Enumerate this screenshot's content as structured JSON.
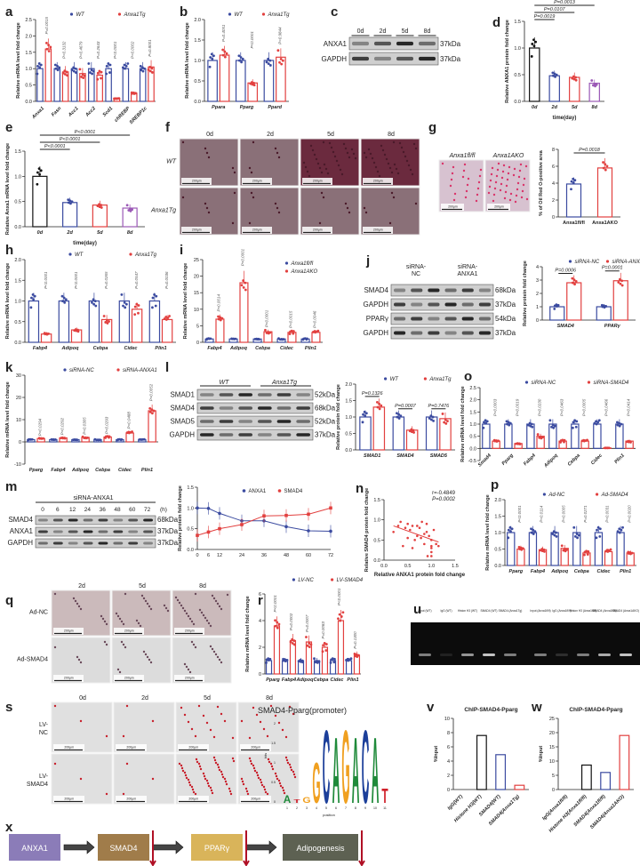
{
  "colors": {
    "blue": "#3b4ba0",
    "red": "#e2403f",
    "black": "#111111",
    "purple": "#9b59b6",
    "line_blue": "#3b4ba0",
    "line_red": "#e2403f"
  },
  "panel_letters": [
    "a",
    "b",
    "c",
    "d",
    "e",
    "f",
    "g",
    "h",
    "i",
    "j",
    "k",
    "l",
    "m",
    "n",
    "o",
    "p",
    "q",
    "r",
    "s",
    "t",
    "u",
    "v",
    "w",
    "x"
  ],
  "blots": {
    "c": {
      "lanes": [
        "0d",
        "2d",
        "5d",
        "8d"
      ],
      "rows": [
        {
          "name": "ANXA1",
          "kda": "37kDa"
        },
        {
          "name": "GAPDH",
          "kda": "37kDa"
        }
      ]
    },
    "j": {
      "groups": [
        "siRNA-\nNC",
        "siRNA-\nANXA1"
      ],
      "group_lines": [
        [
          "siRNA-",
          "NC"
        ],
        [
          "siRNA-",
          "ANXA1"
        ]
      ],
      "rows": [
        {
          "name": "SMAD4",
          "kda": "68kDa"
        },
        {
          "name": "GAPDH",
          "kda": "37kDa"
        },
        {
          "name": "PPARγ",
          "kda": "54kDa"
        },
        {
          "name": "GAPDH",
          "kda": "37kDa"
        }
      ]
    },
    "l": {
      "groups": [
        "WT",
        "Anxa1Tg"
      ],
      "rows": [
        {
          "name": "SMAD1",
          "kda": "52kDa"
        },
        {
          "name": "SMAD4",
          "kda": "68kDa"
        },
        {
          "name": "SMAD5",
          "kda": "52kDa"
        },
        {
          "name": "GAPDH",
          "kda": "37kDa"
        }
      ]
    },
    "m": {
      "group": "siRNA-ANXA1",
      "lanes": [
        "0",
        "6",
        "12",
        "24",
        "36",
        "48",
        "60",
        "72"
      ],
      "unit": "(h)",
      "rows": [
        {
          "name": "SMAD4",
          "kda": "68kDa"
        },
        {
          "name": "ANXA1",
          "kda": "37kDa"
        },
        {
          "name": "GAPDH",
          "kda": "37kDa"
        }
      ]
    }
  },
  "micrographs": {
    "f": {
      "cols": [
        "0d",
        "2d",
        "5d",
        "8d"
      ],
      "rows": [
        "WT",
        "Anxa1Tg"
      ]
    },
    "g": {
      "cols": [
        "Anxa1fl/fl",
        "Anxa1AKO"
      ]
    },
    "q": {
      "cols": [
        "2d",
        "5d",
        "8d"
      ],
      "rows": [
        "Ad-NC",
        "Ad-SMAD4"
      ]
    },
    "s": {
      "cols": [
        "0d",
        "2d",
        "5d",
        "8d"
      ],
      "rows": [
        "LV-\nNC",
        "LV-\nSMAD4"
      ],
      "row_lines": [
        [
          "LV-",
          "NC"
        ],
        [
          "LV-",
          "SMAD4"
        ]
      ]
    },
    "scale_bar": "200μm"
  },
  "gel_u": {
    "lanes": [
      "Input (WT)",
      "IgG (WT)",
      "Histon H3 (WT)",
      "SMAD4 (WT)",
      "SMAD4 (Anxa1Tg)",
      "Input (Anxa1fl/fl)",
      "IgG (Anxa1fl/fl)",
      "Histon H3 (Anxa1fl/fl)",
      "SMAD4 (Anxa1fl/fl)",
      "SMAD4 (Anxa1AKO)"
    ],
    "band_intensity": [
      0.5,
      0.1,
      0.6,
      0.8,
      0.5,
      0.5,
      0.15,
      0.5,
      0.7,
      0.8
    ]
  },
  "motif_t": {
    "title": "SMAD4-Pparg(promoter)",
    "xlabel": "position",
    "ylabel": "bits",
    "positions": [
      "1",
      "2",
      "3",
      "4",
      "5",
      "6",
      "7",
      "8",
      "9",
      "10",
      "11"
    ],
    "letters": [
      "A",
      "T",
      "G",
      "G",
      "C",
      "A",
      "G",
      "A",
      "C",
      "A",
      "T"
    ],
    "heights": [
      0.2,
      0.1,
      0.15,
      1.1,
      2.0,
      1.8,
      2.0,
      1.8,
      2.0,
      1.8,
      0.4
    ],
    "yticks": [
      "0",
      "0.5",
      "1",
      "1.5",
      "2"
    ]
  },
  "pathway_x": {
    "nodes": [
      {
        "label": "ANXA1",
        "color": "#8b7cb8"
      },
      {
        "label": "SMAD4",
        "color": "#a07c4a"
      },
      {
        "label": "PPARγ",
        "color": "#d9b45a"
      },
      {
        "label": "Adipogenesis",
        "color": "#5d6152"
      }
    ]
  },
  "chart_data": [
    {
      "id": "a",
      "type": "bar",
      "ylabel": "Relative mRNA level fold change",
      "ylim": [
        0,
        2.5
      ],
      "yticks": [
        "0.0",
        "0.5",
        "1.0",
        "1.5",
        "2.0",
        "2.5"
      ],
      "categories": [
        "Anxa1",
        "Fasn",
        "Acc1",
        "Acc2",
        "Scd1",
        "chREBP",
        "SREBP1c"
      ],
      "series": [
        {
          "name": "WT",
          "values": [
            1,
            1,
            1,
            1,
            1,
            1,
            1
          ]
        },
        {
          "name": "Anxa1Tg",
          "values": [
            1.6,
            0.9,
            0.85,
            0.8,
            0.08,
            0.25,
            1.05
          ]
        }
      ],
      "pvalues": [
        "P=0.0015",
        "P=0.3132",
        "P=0.4679",
        "P=0.2643",
        "P<0.0001",
        "P=0.0002",
        "P=0.8001"
      ],
      "xrot": true
    },
    {
      "id": "b",
      "type": "bar",
      "ylabel": "Relative mRNA level fold change",
      "ylim": [
        0,
        2.0
      ],
      "yticks": [
        "0.0",
        "0.5",
        "1.0",
        "1.5",
        "2.0"
      ],
      "categories": [
        "Ppara",
        "Pparg",
        "Ppard"
      ],
      "series": [
        {
          "name": "WT",
          "values": [
            1,
            1,
            1
          ]
        },
        {
          "name": "Anxa1Tg",
          "values": [
            1.13,
            0.45,
            1.08
          ]
        }
      ],
      "pvalues": [
        "P=0.4051",
        "P<0.0001",
        "P=0.9844"
      ]
    },
    {
      "id": "d",
      "type": "bar",
      "ylabel": "Relative ANXA1 protein fold change",
      "xlabel": "time(day)",
      "ylim": [
        0,
        1.5
      ],
      "yticks": [
        "0.0",
        "0.5",
        "1.0",
        "1.5"
      ],
      "categories": [
        "0d",
        "2d",
        "5d",
        "8d"
      ],
      "series": [
        {
          "values": [
            1.0,
            0.48,
            0.45,
            0.34
          ]
        }
      ],
      "bar_colors": [
        "#111111",
        "#3b4ba0",
        "#e2403f",
        "#9b59b6"
      ],
      "brackets": [
        "P=0.0019",
        "P=0.0107",
        "P=0.0013"
      ]
    },
    {
      "id": "e",
      "type": "bar",
      "ylabel": "Relative Anxa1 mRNA level fold change",
      "xlabel": "time(day)",
      "ylim": [
        0,
        1.5
      ],
      "yticks": [
        "0.0",
        "0.5",
        "1.0",
        "1.5"
      ],
      "categories": [
        "0d",
        "2d",
        "5d",
        "8d"
      ],
      "series": [
        {
          "values": [
            1.0,
            0.48,
            0.43,
            0.37
          ]
        }
      ],
      "bar_colors": [
        "#111111",
        "#3b4ba0",
        "#e2403f",
        "#9b59b6"
      ],
      "brackets": [
        "P<0.0001",
        "P<0.0001",
        "P<0.0001"
      ]
    },
    {
      "id": "g",
      "type": "bar",
      "ylabel": "% of Oil Red O-positive area",
      "ylim": [
        0,
        8
      ],
      "yticks": [
        "0",
        "2",
        "4",
        "6",
        "8"
      ],
      "categories": [
        "Anxa1fl/fl",
        "Anxa1AKO"
      ],
      "series": [
        {
          "values": [
            3.9,
            5.8
          ]
        }
      ],
      "bar_colors": [
        "#3b4ba0",
        "#e2403f"
      ],
      "brackets": [
        "P=0.0018"
      ]
    },
    {
      "id": "h",
      "type": "bar",
      "ylabel": "Relative mRNA level fold change",
      "ylim": [
        0,
        2.0
      ],
      "yticks": [
        "0.0",
        "0.5",
        "1.0",
        "1.5",
        "2.0"
      ],
      "categories": [
        "Fabp4",
        "Adipoq",
        "Cebpa",
        "Cidec",
        "Plin1"
      ],
      "series": [
        {
          "name": "WT",
          "values": [
            1,
            1,
            1,
            1,
            1
          ]
        },
        {
          "name": "Anxa1Tg",
          "values": [
            0.2,
            0.3,
            0.55,
            0.8,
            0.55
          ]
        }
      ],
      "pvalues": [
        "P<0.0001",
        "P<0.0001",
        "P=0.0265",
        "P=0.0547",
        "P=0.0036"
      ]
    },
    {
      "id": "i",
      "type": "bar",
      "ylabel": "Relative mRNA level fold change",
      "ylim": [
        0,
        25
      ],
      "yticks": [
        "0",
        "5",
        "10",
        "15",
        "20",
        "25"
      ],
      "categories": [
        "Fabp4",
        "Adipoq",
        "Cebpa",
        "Cidec",
        "Plin1"
      ],
      "series": [
        {
          "name": "Anxa1fl/fl",
          "values": [
            1,
            1,
            1,
            1,
            1
          ]
        },
        {
          "name": "Anxa1AKO",
          "values": [
            7,
            18,
            3.2,
            3,
            3
          ]
        }
      ],
      "pvalues": [
        "P=0.0014",
        "P<0.0001",
        "P<0.0001",
        "P=0.0015",
        "P=0.0046"
      ]
    },
    {
      "id": "j",
      "type": "bar",
      "ylabel": "Relative protein fold change",
      "ylim": [
        0,
        4
      ],
      "yticks": [
        "0",
        "1",
        "2",
        "3",
        "4"
      ],
      "categories": [
        "SMAD4",
        "PPARγ"
      ],
      "series": [
        {
          "name": "siRNA-NC",
          "values": [
            1,
            1
          ]
        },
        {
          "name": "siRNA-ANXA1",
          "values": [
            2.8,
            2.95
          ]
        }
      ],
      "brackets": [
        "P=0.0006",
        "P=0.0001"
      ]
    },
    {
      "id": "k",
      "type": "bar",
      "ylabel": "Relative mRNA level fold change",
      "ylim": [
        -10,
        30
      ],
      "yticks": [
        "-10",
        "0",
        "10",
        "20",
        "30"
      ],
      "categories": [
        "Pparg",
        "Fabp4",
        "Adipoq",
        "Cebpa",
        "Cidec",
        "Plin1"
      ],
      "series": [
        {
          "name": "siRNA-NC",
          "values": [
            1,
            1,
            1,
            1,
            1,
            1
          ]
        },
        {
          "name": "siRNA-ANXA1",
          "values": [
            1.5,
            1.8,
            2.0,
            2.2,
            4.0,
            14.0
          ]
        }
      ],
      "pvalues": [
        "P=0.0294",
        "P=0.0292",
        "P=0.0305",
        "P=0.0293",
        "P=0.0488",
        "P=0.0052"
      ]
    },
    {
      "id": "l",
      "type": "bar",
      "ylabel": "Relative protein fold change",
      "ylim": [
        0,
        2.0
      ],
      "yticks": [
        "0.0",
        "0.5",
        "1.0",
        "1.5",
        "2.0"
      ],
      "categories": [
        "SMAD1",
        "SMAD4",
        "SMAD5"
      ],
      "series": [
        {
          "name": "WT",
          "values": [
            1,
            1,
            1
          ]
        },
        {
          "name": "Anxa1Tg",
          "values": [
            1.3,
            0.6,
            0.95
          ]
        }
      ],
      "brackets": [
        "P=0.1326",
        "P=0.0007",
        "P=0.7476"
      ]
    },
    {
      "id": "o",
      "type": "bar",
      "ylabel": "Relative mRNA level fold change",
      "ylim": [
        -0.5,
        2.5
      ],
      "yticks": [
        "-0.5",
        "0.0",
        "0.5",
        "1.0",
        "1.5",
        "2.0",
        "2.5"
      ],
      "categories": [
        "Smad4",
        "Pparg",
        "Fabp4",
        "Adipoq",
        "Cebpa",
        "Cidec",
        "Plin1"
      ],
      "series": [
        {
          "name": "siRNA-NC",
          "values": [
            1,
            1,
            1,
            1,
            1,
            1,
            1
          ]
        },
        {
          "name": "siRNA-SMAD4",
          "values": [
            0.3,
            0.2,
            0.5,
            0.3,
            0.3,
            0.02,
            0.3
          ]
        }
      ],
      "pvalues": [
        "P=0.0003",
        "P=0.0019",
        "P=0.0230",
        "P=0.0463",
        "P=0.0005",
        "P=0.0466",
        "P=0.0414"
      ],
      "xrot": true
    },
    {
      "id": "m",
      "type": "line",
      "ylabel": "Relative protein fold change",
      "ylim": [
        0,
        1.5
      ],
      "yticks": [
        "0.0",
        "0.5",
        "1.0",
        "1.5"
      ],
      "x": [
        0,
        6,
        12,
        24,
        36,
        48,
        60,
        72
      ],
      "xticks": [
        "0",
        "6",
        "12",
        "24",
        "36",
        "48",
        "60",
        "72"
      ],
      "series": [
        {
          "name": "ANXA1",
          "values": [
            1.0,
            0.99,
            0.87,
            0.69,
            0.69,
            0.55,
            0.45,
            0.44
          ]
        },
        {
          "name": "SMAD4",
          "values": [
            0.34,
            0.42,
            0.5,
            0.6,
            0.81,
            0.82,
            0.85,
            1.0
          ]
        }
      ]
    },
    {
      "id": "n",
      "type": "scatter",
      "xlabel": "Relative ANXA1 protein fold change",
      "ylabel": "Relative SMAD4 protein fold change",
      "xlim": [
        0,
        1.5
      ],
      "ylim": [
        0,
        1.5
      ],
      "xticks": [
        "0.0",
        "0.5",
        "1.0",
        "1.5"
      ],
      "yticks": [
        "0.0",
        "0.5",
        "1.0",
        "1.5"
      ],
      "annotation": [
        "r=-0.4849",
        "P=0.0002"
      ],
      "points": [
        [
          0.2,
          0.7
        ],
        [
          0.3,
          0.85
        ],
        [
          0.35,
          0.95
        ],
        [
          0.4,
          0.35
        ],
        [
          0.45,
          0.8
        ],
        [
          0.5,
          0.9
        ],
        [
          0.55,
          0.75
        ],
        [
          0.6,
          0.3
        ],
        [
          0.6,
          0.85
        ],
        [
          0.65,
          0.5
        ],
        [
          0.7,
          0.85
        ],
        [
          0.75,
          0.8
        ],
        [
          0.78,
          0.55
        ],
        [
          0.8,
          0.95
        ],
        [
          0.85,
          0.65
        ],
        [
          0.85,
          0.4
        ],
        [
          0.9,
          0.9
        ],
        [
          0.92,
          0.1
        ],
        [
          0.95,
          0.6
        ],
        [
          1.0,
          0.5
        ],
        [
          1.0,
          0.3
        ],
        [
          1.0,
          0.2
        ],
        [
          1.0,
          0.1
        ],
        [
          1.0,
          0.35
        ],
        [
          1.05,
          0.75
        ],
        [
          1.1,
          0.4
        ],
        [
          1.15,
          0.35
        ],
        [
          0.7,
          0.6
        ],
        [
          0.5,
          0.55
        ],
        [
          0.9,
          0.7
        ]
      ],
      "fit": [
        [
          0.2,
          0.85
        ],
        [
          1.15,
          0.45
        ]
      ]
    },
    {
      "id": "p",
      "type": "bar",
      "ylabel": "Relative mRNA level fold change",
      "ylim": [
        0,
        2.0
      ],
      "yticks": [
        "0.0",
        "0.5",
        "1.0",
        "1.5",
        "2.0"
      ],
      "categories": [
        "Pparg",
        "Fabp4",
        "Adipoq",
        "Cebpa",
        "Cidec",
        "Plin1"
      ],
      "series": [
        {
          "name": "Ad-NC",
          "values": [
            1,
            1,
            1,
            1,
            1,
            1
          ]
        },
        {
          "name": "Ad-SMAD4",
          "values": [
            0.5,
            0.48,
            0.52,
            0.38,
            0.42,
            0.38
          ]
        }
      ],
      "pvalues": [
        "P<0.0001",
        "P=0.0114",
        "P=0.0005",
        "P=0.0271",
        "P=0.0031",
        "P=0.0020"
      ]
    },
    {
      "id": "r",
      "type": "bar",
      "ylabel": "Relative mRNA level fold change",
      "ylim": [
        0,
        6
      ],
      "yticks": [
        "0",
        "2",
        "4",
        "6"
      ],
      "categories": [
        "Pparg",
        "Fabp4",
        "Adipoq",
        "Cebpa",
        "Cidec",
        "Plin1"
      ],
      "series": [
        {
          "name": "LV-NC",
          "values": [
            1,
            1,
            1,
            1,
            1,
            1
          ]
        },
        {
          "name": "LV-SMAD4",
          "values": [
            3.6,
            2.5,
            2.4,
            2.0,
            4.0,
            1.4
          ]
        }
      ],
      "pvalues": [
        "P<0.0001",
        "P=0.0002",
        "P=0.0007",
        "P=0.0083",
        "P<0.0001",
        "P=0.1300"
      ]
    },
    {
      "id": "v",
      "type": "bar",
      "title": "ChIP-SMAD4-Pparg",
      "ylabel": "%Input",
      "ylim": [
        0,
        10
      ],
      "yticks": [
        "0",
        "2",
        "4",
        "6",
        "8",
        "10"
      ],
      "categories": [
        "IgG(WT)",
        "Histone H3(WT)",
        "SMAD4(WT)",
        "SMAD4(Anxa1Tg)"
      ],
      "series": [
        {
          "values": [
            0,
            7.6,
            4.9,
            0.6
          ]
        }
      ],
      "bar_colors": [
        "#111111",
        "#111111",
        "#3b4ba0",
        "#e2403f"
      ],
      "xrot": true,
      "nodots": true
    },
    {
      "id": "w",
      "type": "bar",
      "title": "ChIP-SMAD4-Pparg",
      "ylabel": "%Input",
      "ylim": [
        0,
        25
      ],
      "yticks": [
        "0",
        "5",
        "10",
        "15",
        "20",
        "25"
      ],
      "categories": [
        "IgG(Anxa1fl/fl)",
        "Histone H3(Anxa1fl/fl)",
        "SMAD4(Anxa1fl/fl)",
        "SMAD4(Anxa1AKO)"
      ],
      "series": [
        {
          "values": [
            0,
            8.6,
            6,
            19
          ]
        }
      ],
      "bar_colors": [
        "#111111",
        "#111111",
        "#3b4ba0",
        "#e2403f"
      ],
      "xrot": true,
      "nodots": true
    }
  ]
}
